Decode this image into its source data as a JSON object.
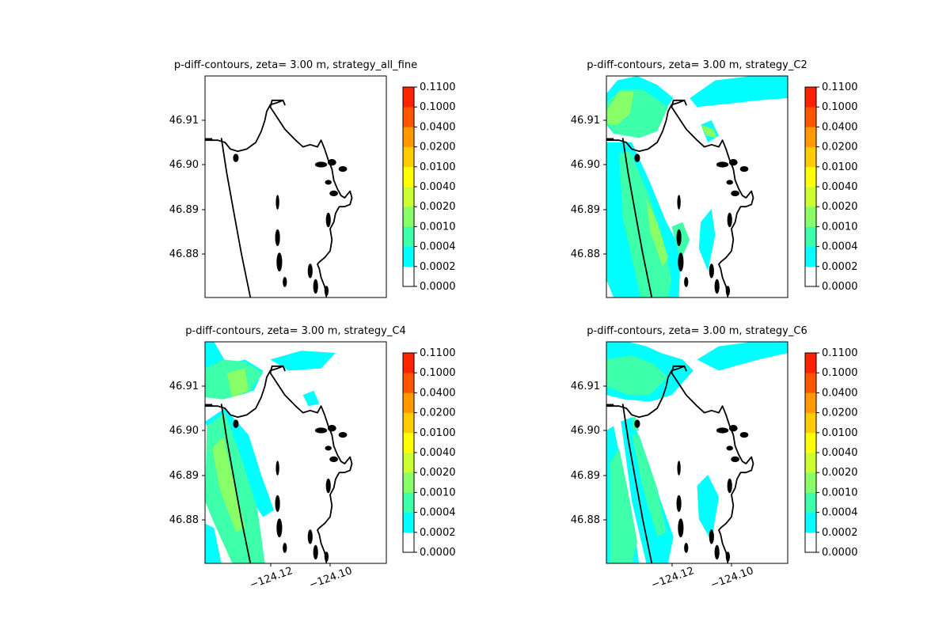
{
  "colorbar": {
    "levels": [
      "0.0000",
      "0.0002",
      "0.0004",
      "0.0010",
      "0.0020",
      "0.0040",
      "0.0100",
      "0.0200",
      "0.0400",
      "0.1000",
      "0.1100"
    ],
    "colors": [
      "#ffffff",
      "#00ffff",
      "#3effaa",
      "#88ff66",
      "#ccff33",
      "#ffff00",
      "#ffcc00",
      "#ff9900",
      "#ff5500",
      "#ff2200"
    ]
  },
  "coast_color": "#000000",
  "chart_data": [
    {
      "type": "heatmap",
      "title": "p-diff-contours, zeta= 3.00 m, strategy_all_fine",
      "yticks": [
        "46.91",
        "46.90",
        "46.89",
        "46.88"
      ],
      "xticks": [],
      "xlim": [
        -124.14,
        -124.08
      ],
      "ylim": [
        46.871,
        46.9195
      ],
      "fill": "none"
    },
    {
      "type": "heatmap",
      "title": "p-diff-contours, zeta= 3.00 m, strategy_C2",
      "yticks": [
        "46.91",
        "46.90",
        "46.89",
        "46.88"
      ],
      "xticks": [],
      "xlim": [
        -124.14,
        -124.08
      ],
      "ylim": [
        46.871,
        46.9195
      ],
      "fill": "C2"
    },
    {
      "type": "heatmap",
      "title": "p-diff-contours, zeta= 3.00 m, strategy_C4",
      "yticks": [
        "46.91",
        "46.90",
        "46.89",
        "46.88"
      ],
      "xticks": [
        "−124.12",
        "−124.10"
      ],
      "xlim": [
        -124.14,
        -124.08
      ],
      "ylim": [
        46.871,
        46.9195
      ],
      "fill": "C4"
    },
    {
      "type": "heatmap",
      "title": "p-diff-contours, zeta= 3.00 m, strategy_C6",
      "yticks": [
        "46.91",
        "46.90",
        "46.89",
        "46.88"
      ],
      "xticks": [
        "−124.12",
        "−124.10"
      ],
      "xlim": [
        -124.14,
        -124.08
      ],
      "ylim": [
        46.871,
        46.9195
      ],
      "fill": "C6"
    }
  ]
}
